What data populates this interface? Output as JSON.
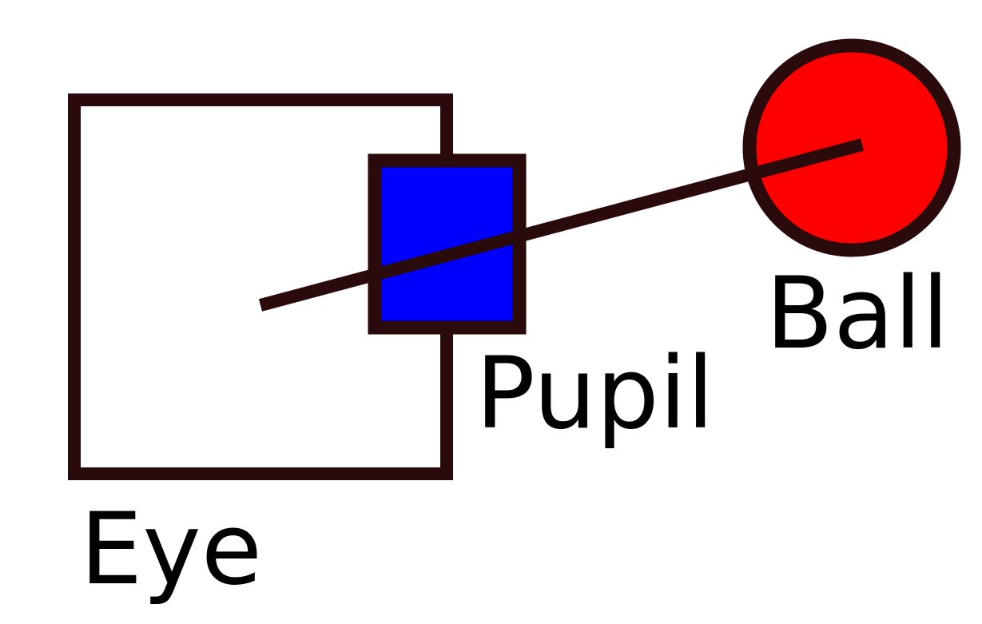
{
  "labels": {
    "eye": "Eye",
    "pupil": "Pupil",
    "ball": "Ball"
  },
  "colors": {
    "stroke": "#2a0a0a",
    "eye_fill": "#ffffff",
    "pupil_fill": "#0000ff",
    "ball_fill": "#ff0000",
    "text": "#000000",
    "background": "#ffffff"
  }
}
